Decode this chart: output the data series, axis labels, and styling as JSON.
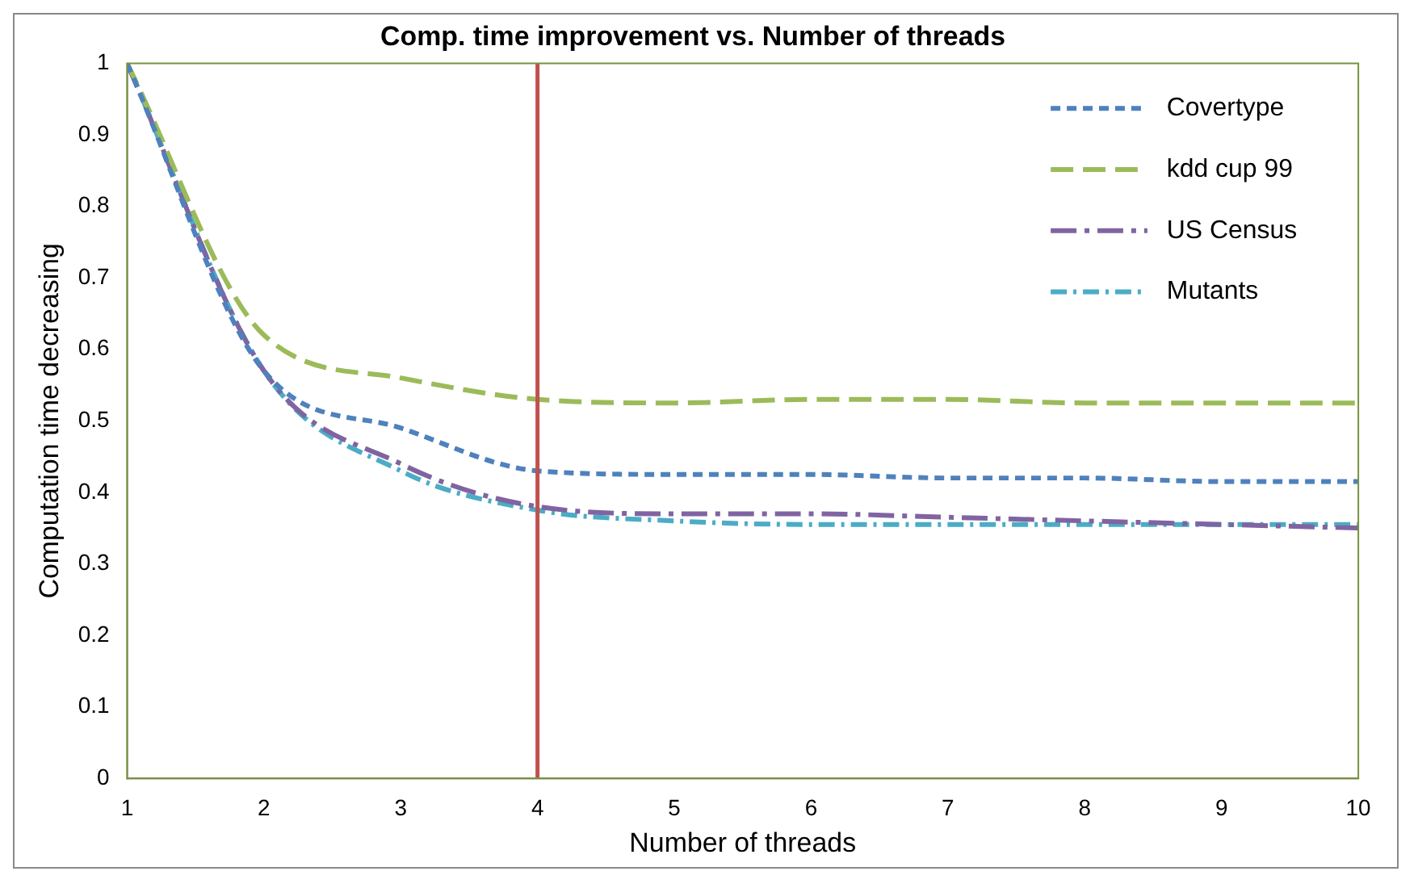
{
  "chart_data": {
    "type": "line",
    "title": "Comp. time improvement vs. Number of threads",
    "xlabel": "Number of threads",
    "ylabel": "Computation time decreasing",
    "x": [
      1,
      2,
      3,
      4,
      5,
      6,
      7,
      8,
      9,
      10
    ],
    "series": [
      {
        "name": "Covertype",
        "color": "#4f81bd",
        "values": [
          1,
          0.57,
          0.49,
          0.43,
          0.425,
          0.425,
          0.42,
          0.42,
          0.415,
          0.415
        ]
      },
      {
        "name": "kdd cup 99",
        "color": "#9bbb59",
        "values": [
          1,
          0.62,
          0.56,
          0.53,
          0.525,
          0.53,
          0.53,
          0.525,
          0.525,
          0.525
        ]
      },
      {
        "name": "US Census",
        "color": "#8064a2",
        "values": [
          1,
          0.57,
          0.44,
          0.38,
          0.37,
          0.37,
          0.365,
          0.36,
          0.355,
          0.35
        ]
      },
      {
        "name": "Mutants",
        "color": "#4bacc6",
        "values": [
          1,
          0.57,
          0.43,
          0.375,
          0.36,
          0.355,
          0.355,
          0.355,
          0.355,
          0.355
        ]
      }
    ],
    "xlim": [
      1,
      10
    ],
    "xticks": [
      1,
      2,
      3,
      4,
      5,
      6,
      7,
      8,
      9,
      10
    ],
    "ylim": [
      0,
      1
    ],
    "yticks": [
      0,
      0.1,
      0.2,
      0.3,
      0.4,
      0.5,
      0.6,
      0.7,
      0.8,
      0.9,
      1
    ],
    "ref_lines": [
      {
        "axis": "x",
        "value": 4,
        "color": "#c0504d"
      }
    ],
    "grid": false,
    "legend": "top right",
    "marker": "none",
    "line_style": "dashed"
  }
}
